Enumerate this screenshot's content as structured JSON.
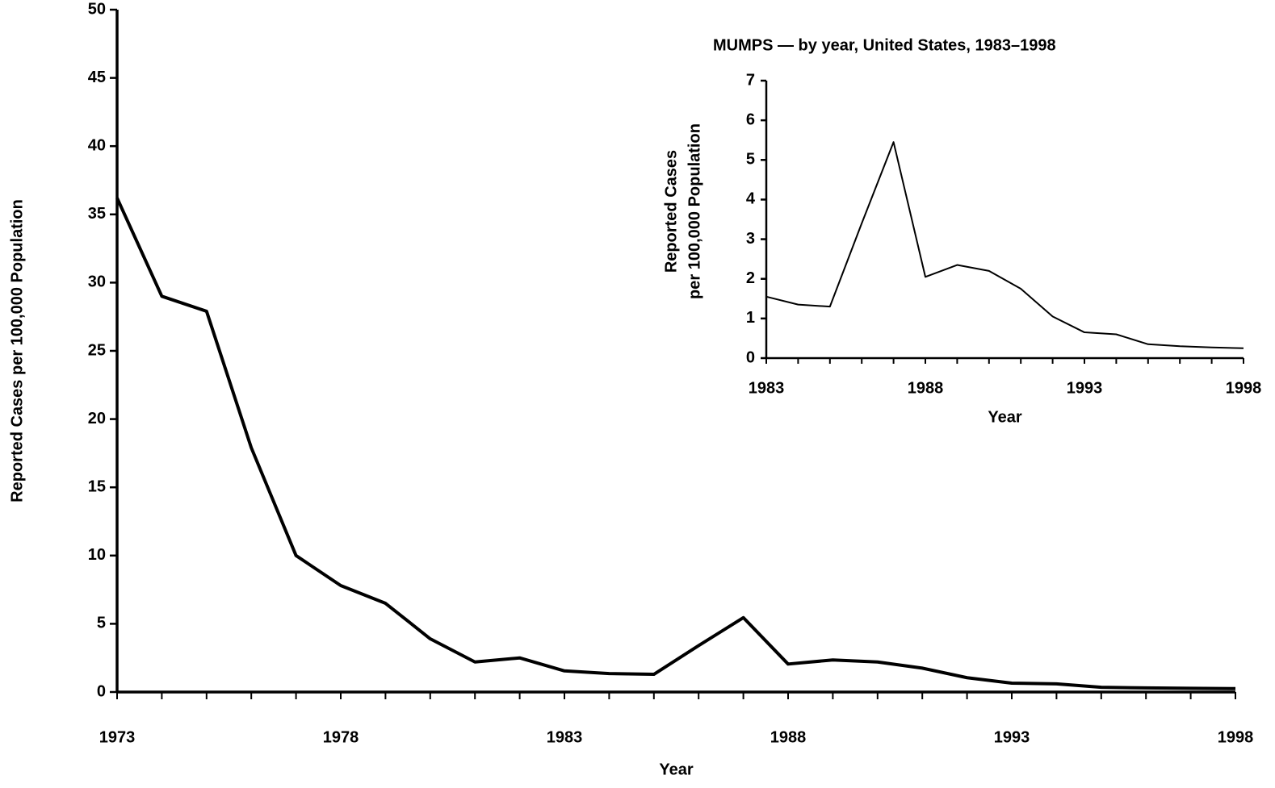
{
  "chart_data": [
    {
      "type": "line",
      "x_label": "Year",
      "y_label": "Reported Cases per 100,000 Population",
      "x": [
        1973,
        1974,
        1975,
        1976,
        1977,
        1978,
        1979,
        1980,
        1981,
        1982,
        1983,
        1984,
        1985,
        1986,
        1987,
        1988,
        1989,
        1990,
        1991,
        1992,
        1993,
        1994,
        1995,
        1996,
        1997,
        1998
      ],
      "values": [
        36.2,
        29.0,
        27.9,
        17.9,
        10.0,
        7.8,
        6.5,
        3.9,
        2.2,
        2.5,
        1.55,
        1.35,
        1.3,
        3.4,
        5.45,
        2.05,
        2.35,
        2.2,
        1.75,
        1.05,
        0.65,
        0.6,
        0.35,
        0.3,
        0.27,
        0.25
      ],
      "color": "#000000",
      "xlim": [
        1973,
        1998
      ],
      "xticks": [
        1973,
        1978,
        1983,
        1988,
        1993,
        1998
      ],
      "ylim": [
        0,
        50
      ],
      "yticks": [
        0,
        5,
        10,
        15,
        20,
        25,
        30,
        35,
        40,
        45,
        50
      ]
    },
    {
      "type": "line",
      "title": "MUMPS — by year, United States, 1983–1998",
      "x_label": "Year",
      "y_label": [
        "Reported Cases",
        "per 100,000 Population"
      ],
      "x": [
        1983,
        1984,
        1985,
        1986,
        1987,
        1988,
        1989,
        1990,
        1991,
        1992,
        1993,
        1994,
        1995,
        1996,
        1997,
        1998
      ],
      "values": [
        1.55,
        1.35,
        1.3,
        3.4,
        5.45,
        2.05,
        2.35,
        2.2,
        1.75,
        1.05,
        0.65,
        0.6,
        0.35,
        0.3,
        0.27,
        0.25
      ],
      "color": "#000000",
      "xlim": [
        1983,
        1998
      ],
      "xticks": [
        1983,
        1988,
        1993,
        1998
      ],
      "ylim": [
        0,
        7
      ],
      "yticks": [
        0,
        1,
        2,
        3,
        4,
        5,
        6,
        7
      ]
    }
  ]
}
